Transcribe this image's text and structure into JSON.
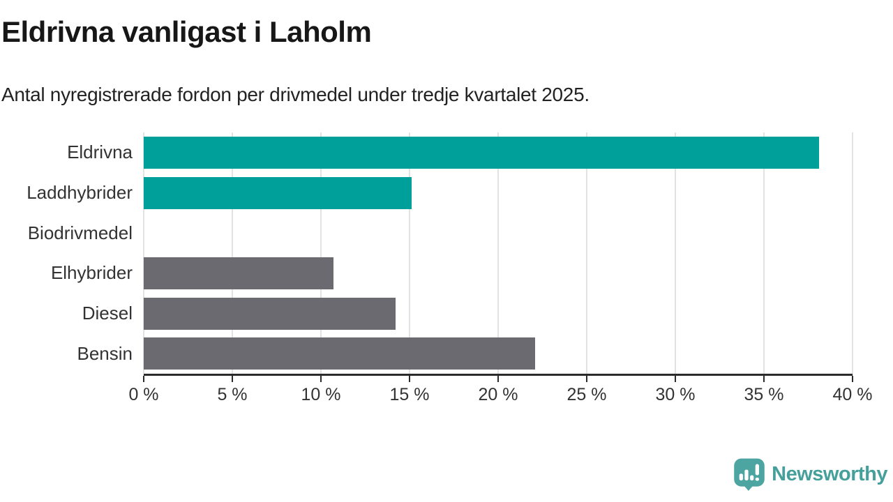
{
  "title": "Eldrivna vanligast i Laholm",
  "subtitle": "Antal nyregistrerade fordon per drivmedel under tredje kvartalet 2025.",
  "chart_data": {
    "type": "bar",
    "orientation": "horizontal",
    "categories": [
      "Eldrivna",
      "Laddhybrider",
      "Biodrivmedel",
      "Elhybrider",
      "Diesel",
      "Bensin"
    ],
    "values": [
      38.1,
      15.1,
      0,
      10.7,
      14.2,
      22.1
    ],
    "unit": "%",
    "xlim": [
      0,
      40
    ],
    "xticks": [
      0,
      5,
      10,
      15,
      20,
      25,
      30,
      35,
      40
    ],
    "xtick_labels": [
      "0 %",
      "5 %",
      "10 %",
      "15 %",
      "20 %",
      "25 %",
      "30 %",
      "35 %",
      "40 %"
    ],
    "highlighted": [
      true,
      true,
      false,
      false,
      false,
      false
    ],
    "highlight_color": "#00a09a",
    "default_color": "#6a6a70",
    "grid": true,
    "gridline_color": "#e2e2e2",
    "axis_color": "#2b2b2b",
    "label_color": "#333333",
    "legend": "none"
  },
  "footer": {
    "brand": "Newsworthy",
    "brand_color": "#45a09b",
    "icon": "newsworthy-bubble-barchart-icon"
  }
}
